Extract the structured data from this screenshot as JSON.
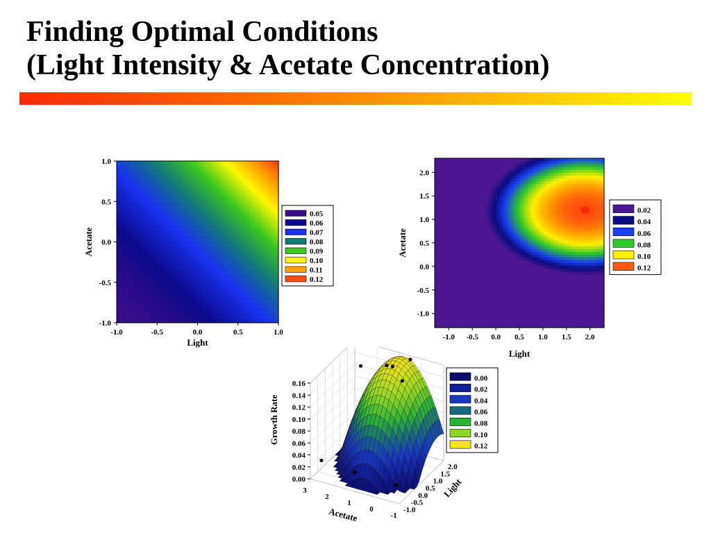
{
  "slide": {
    "title_line1": "Finding Optimal Conditions",
    "title_line2": "(Light Intensity & Acetate Concentration)"
  },
  "colors": {
    "title_bar_gradient": [
      "#ff2a00",
      "#ff6a00",
      "#ffae00",
      "#ffff00"
    ]
  },
  "chart_data": [
    {
      "type": "heatmap",
      "subtype": "filled-contour",
      "xlabel": "Light",
      "ylabel": "Acetate",
      "xlim": [
        -1.0,
        1.0
      ],
      "ylim": [
        -1.0,
        1.0
      ],
      "x_ticks": [
        "-1.0",
        "-0.5",
        "0.0",
        "0.5",
        "1.0"
      ],
      "y_ticks": [
        "-1.0",
        "-0.5",
        "0.0",
        "0.5",
        "1.0"
      ],
      "legend": {
        "placement": "right",
        "entries": [
          {
            "label": "0.05",
            "color": "#3a0d8a"
          },
          {
            "label": "0.06",
            "color": "#0c0a8c"
          },
          {
            "label": "0.07",
            "color": "#1832f0"
          },
          {
            "label": "0.08",
            "color": "#137a78"
          },
          {
            "label": "0.09",
            "color": "#3cc81e"
          },
          {
            "label": "0.10",
            "color": "#fff700"
          },
          {
            "label": "0.11",
            "color": "#ffa000"
          },
          {
            "label": "0.12",
            "color": "#ff4a10"
          }
        ]
      },
      "corner_values": {
        "x_-1_y_-1": 0.05,
        "x_1_y_1": 0.125
      },
      "grid": false
    },
    {
      "type": "heatmap",
      "subtype": "filled-contour",
      "xlabel": "Light",
      "ylabel": "Acetate",
      "xlim": [
        -1.3,
        2.3
      ],
      "ylim": [
        -1.3,
        2.3
      ],
      "x_ticks": [
        "-1.0",
        "-0.5",
        "0.0",
        "0.5",
        "1.0",
        "1.5",
        "2.0"
      ],
      "y_ticks": [
        "-1.0",
        "-0.5",
        "0.0",
        "0.5",
        "1.0",
        "1.5",
        "2.0"
      ],
      "optimum": {
        "light": 1.9,
        "acetate": 1.2,
        "value": 0.125
      },
      "legend": {
        "placement": "right",
        "entries": [
          {
            "label": "0.02",
            "color": "#4b1690"
          },
          {
            "label": "0.04",
            "color": "#0a0c80"
          },
          {
            "label": "0.06",
            "color": "#1a3ff0"
          },
          {
            "label": "0.08",
            "color": "#2ec82a"
          },
          {
            "label": "0.10",
            "color": "#fff000"
          },
          {
            "label": "0.12",
            "color": "#ff5a10"
          }
        ]
      },
      "grid": false
    },
    {
      "type": "scatter",
      "subtype": "3d-surface",
      "xlabel": "Acetate",
      "ylabel": "Light",
      "zlabel": "Growth Rate",
      "x_ticks": [
        "3",
        "2",
        "1",
        "0",
        "-1"
      ],
      "y_ticks": [
        "-1.0",
        "-0.5",
        "0.0",
        "0.5",
        "1.0",
        "1.5",
        "2.0"
      ],
      "z_ticks": [
        "0.00",
        "0.02",
        "0.04",
        "0.06",
        "0.08",
        "0.10",
        "0.12",
        "0.14",
        "0.16"
      ],
      "zlim": [
        0.0,
        0.16
      ],
      "points": [
        {
          "acetate": 2.5,
          "light": -1.0,
          "rate": 0.036
        },
        {
          "acetate": 1.0,
          "light": -1.0,
          "rate": 0.032
        },
        {
          "acetate": -0.6,
          "light": -0.6,
          "rate": 0.018
        },
        {
          "acetate": 2.4,
          "light": 1.5,
          "rate": 0.135
        },
        {
          "acetate": 1.3,
          "light": 1.6,
          "rate": 0.145
        },
        {
          "acetate": 0.9,
          "light": 1.4,
          "rate": 0.152
        },
        {
          "acetate": 0.3,
          "light": 1.7,
          "rate": 0.163
        },
        {
          "acetate": 0.2,
          "light": 1.0,
          "rate": 0.145
        }
      ],
      "legend": {
        "placement": "right",
        "entries": [
          {
            "label": "0.00",
            "color": "#0a0a6a"
          },
          {
            "label": "0.02",
            "color": "#0f1d98"
          },
          {
            "label": "0.04",
            "color": "#1838c0"
          },
          {
            "label": "0.06",
            "color": "#176a7e"
          },
          {
            "label": "0.08",
            "color": "#2bb038"
          },
          {
            "label": "0.10",
            "color": "#8fd624"
          },
          {
            "label": "0.12",
            "color": "#f3e41a"
          }
        ]
      },
      "grid": true
    }
  ]
}
